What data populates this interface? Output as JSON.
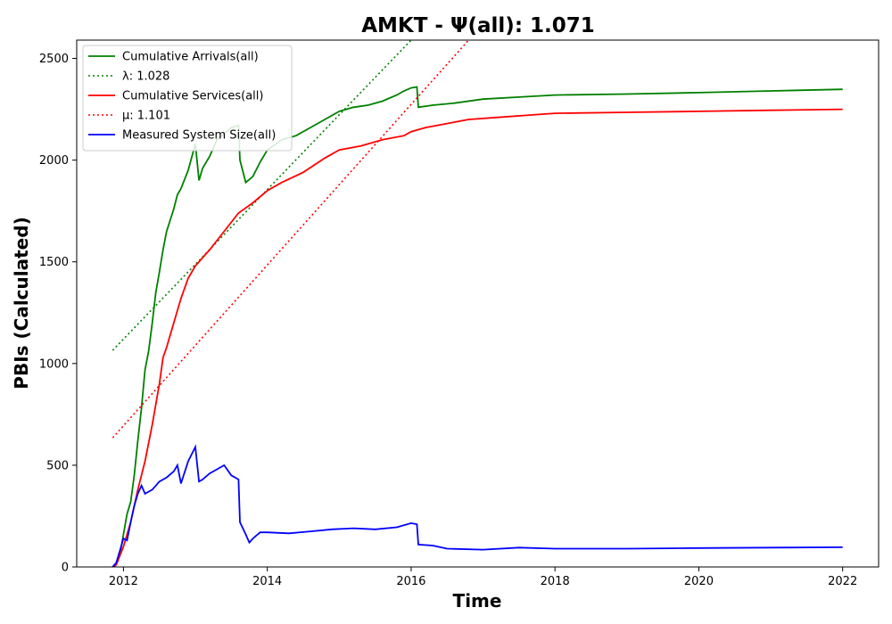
{
  "chart_data": {
    "type": "line",
    "title": "AMKT -  Ψ(all): 1.071",
    "xlabel": "Time",
    "ylabel": "PBIs (Calculated)",
    "xlim": [
      2011.35,
      2022.5
    ],
    "ylim": [
      0,
      2590
    ],
    "xticks": [
      2012,
      2014,
      2016,
      2018,
      2020,
      2022
    ],
    "yticks": [
      0,
      500,
      1000,
      1500,
      2000,
      2500
    ],
    "grid": false,
    "legend_position": "top-left",
    "series": [
      {
        "name": "Cumulative Arrivals(all)",
        "color": "#008000",
        "style": "solid",
        "x": [
          2011.85,
          2011.9,
          2011.95,
          2012.0,
          2012.05,
          2012.1,
          2012.15,
          2012.2,
          2012.25,
          2012.3,
          2012.35,
          2012.4,
          2012.45,
          2012.5,
          2012.55,
          2012.6,
          2012.7,
          2012.75,
          2012.8,
          2012.9,
          2013.0,
          2013.05,
          2013.1,
          2013.2,
          2013.3,
          2013.4,
          2013.5,
          2013.6,
          2013.62,
          2013.7,
          2013.8,
          2013.9,
          2014.0,
          2014.2,
          2014.4,
          2014.6,
          2014.8,
          2015.0,
          2015.2,
          2015.4,
          2015.6,
          2015.8,
          2015.9,
          2016.0,
          2016.08,
          2016.1,
          2016.3,
          2016.6,
          2017.0,
          2017.5,
          2018.0,
          2019.0,
          2020.0,
          2021.0,
          2022.0
        ],
        "values": [
          0,
          20,
          60,
          160,
          260,
          320,
          450,
          620,
          780,
          970,
          1060,
          1200,
          1350,
          1450,
          1560,
          1650,
          1760,
          1830,
          1860,
          1950,
          2080,
          1900,
          1960,
          2020,
          2100,
          2130,
          2160,
          2170,
          2000,
          1890,
          1920,
          1990,
          2050,
          2100,
          2120,
          2160,
          2200,
          2240,
          2260,
          2270,
          2290,
          2320,
          2340,
          2355,
          2360,
          2260,
          2270,
          2280,
          2300,
          2310,
          2320,
          2325,
          2332,
          2340,
          2348
        ]
      },
      {
        "name": "λ: 1.028",
        "color": "#008000",
        "style": "dotted",
        "x": [
          2011.85,
          2016.0
        ],
        "values": [
          1065,
          2590
        ]
      },
      {
        "name": "Cumulative Services(all)",
        "color": "#ff0000",
        "style": "solid",
        "x": [
          2011.85,
          2011.9,
          2012.0,
          2012.1,
          2012.2,
          2012.3,
          2012.4,
          2012.5,
          2012.55,
          2012.6,
          2012.7,
          2012.8,
          2012.9,
          2013.0,
          2013.2,
          2013.4,
          2013.6,
          2013.8,
          2014.0,
          2014.2,
          2014.5,
          2014.8,
          2015.0,
          2015.3,
          2015.6,
          2015.9,
          2016.0,
          2016.2,
          2016.5,
          2016.8,
          2017.2,
          2017.6,
          2018.0,
          2019.0,
          2020.0,
          2021.0,
          2022.0
        ],
        "values": [
          0,
          10,
          100,
          220,
          380,
          520,
          700,
          900,
          1030,
          1080,
          1200,
          1320,
          1420,
          1480,
          1560,
          1650,
          1740,
          1790,
          1850,
          1890,
          1940,
          2010,
          2050,
          2070,
          2100,
          2120,
          2140,
          2160,
          2180,
          2200,
          2210,
          2220,
          2230,
          2235,
          2240,
          2245,
          2250
        ]
      },
      {
        "name": "μ: 1.101",
        "color": "#ff0000",
        "style": "dotted",
        "x": [
          2011.85,
          2016.8
        ],
        "values": [
          635,
          2590
        ]
      },
      {
        "name": "Measured System Size(all)",
        "color": "#0000ff",
        "style": "solid",
        "x": [
          2011.85,
          2011.9,
          2011.95,
          2012.0,
          2012.05,
          2012.1,
          2012.15,
          2012.2,
          2012.25,
          2012.3,
          2012.4,
          2012.5,
          2012.6,
          2012.7,
          2012.75,
          2012.8,
          2012.9,
          2013.0,
          2013.05,
          2013.1,
          2013.2,
          2013.3,
          2013.4,
          2013.5,
          2013.6,
          2013.62,
          2013.7,
          2013.75,
          2013.8,
          2013.9,
          2014.0,
          2014.3,
          2014.6,
          2014.9,
          2015.2,
          2015.5,
          2015.8,
          2016.0,
          2016.08,
          2016.1,
          2016.3,
          2016.5,
          2017.0,
          2017.5,
          2018.0,
          2019.0,
          2020.0,
          2021.0,
          2022.0
        ],
        "values": [
          0,
          20,
          80,
          140,
          130,
          220,
          300,
          360,
          400,
          360,
          380,
          420,
          440,
          470,
          500,
          410,
          520,
          590,
          420,
          430,
          460,
          480,
          500,
          450,
          430,
          220,
          160,
          120,
          140,
          170,
          170,
          165,
          175,
          185,
          190,
          185,
          195,
          215,
          210,
          110,
          105,
          90,
          85,
          95,
          90,
          90,
          93,
          95,
          97
        ]
      }
    ]
  }
}
